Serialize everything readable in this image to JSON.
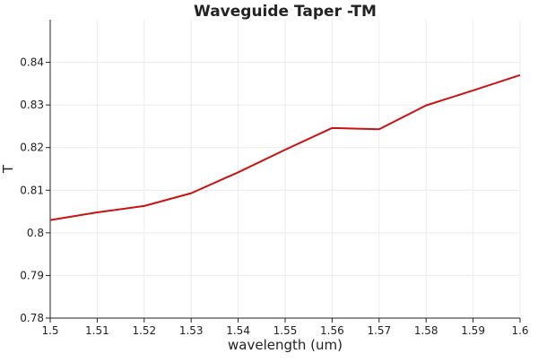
{
  "chart_data": {
    "type": "line",
    "title": "Waveguide Taper -TM",
    "xlabel": "wavelength (um)",
    "ylabel": "T",
    "xlim": [
      1.5,
      1.6
    ],
    "ylim": [
      0.78,
      0.85
    ],
    "x_ticks": [
      "1.5",
      "1.51",
      "1.52",
      "1.53",
      "1.54",
      "1.55",
      "1.56",
      "1.57",
      "1.58",
      "1.59",
      "1.6"
    ],
    "y_ticks": [
      "0.78",
      "0.79",
      "0.8",
      "0.81",
      "0.82",
      "0.83",
      "0.84"
    ],
    "grid": true,
    "series": [
      {
        "color": "#cc1111",
        "x": [
          1.5,
          1.51,
          1.52,
          1.53,
          1.54,
          1.55,
          1.56,
          1.57,
          1.58,
          1.59,
          1.6
        ],
        "y": [
          0.803,
          0.8048,
          0.8063,
          0.8093,
          0.8142,
          0.8195,
          0.8246,
          0.8243,
          0.8299,
          0.8334,
          0.837
        ]
      }
    ]
  }
}
